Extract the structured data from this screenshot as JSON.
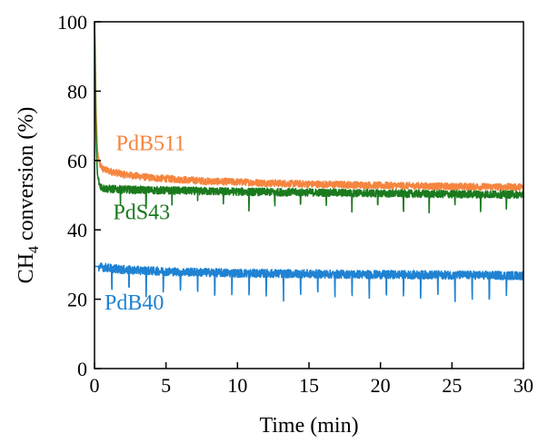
{
  "chart_data": {
    "type": "line",
    "xlabel": "Time (min)",
    "ylabel_main": "CH",
    "ylabel_sub": "4",
    "ylabel_rest": " conversion (%)",
    "xlim": [
      0,
      30
    ],
    "ylim": [
      0,
      100
    ],
    "x_ticks": [
      0,
      5,
      10,
      15,
      20,
      25,
      30
    ],
    "y_ticks": [
      0,
      20,
      40,
      60,
      80,
      100
    ],
    "grid": false,
    "legend": "inline labels",
    "series": [
      {
        "name": "PdB511",
        "color": "#F5853F",
        "points": [
          [
            0.0,
            100
          ],
          [
            0.05,
            92
          ],
          [
            0.1,
            75
          ],
          [
            0.2,
            63
          ],
          [
            0.35,
            59
          ],
          [
            0.6,
            57.5
          ],
          [
            1,
            57
          ],
          [
            2,
            56
          ],
          [
            4,
            55
          ],
          [
            6,
            54.5
          ],
          [
            8,
            54
          ],
          [
            10,
            53.8
          ],
          [
            12,
            53.5
          ],
          [
            15,
            53.2
          ],
          [
            18,
            53
          ],
          [
            20,
            52.8
          ],
          [
            22,
            52.7
          ],
          [
            25,
            52.5
          ],
          [
            28,
            52.4
          ],
          [
            30,
            52.3
          ]
        ],
        "noise": 1.0,
        "label_x": 1.5,
        "label_y": 63
      },
      {
        "name": "PdS43",
        "color": "#1B7A1E",
        "points": [
          [
            0.0,
            100
          ],
          [
            0.05,
            85
          ],
          [
            0.1,
            68
          ],
          [
            0.2,
            56
          ],
          [
            0.35,
            53
          ],
          [
            0.6,
            52
          ],
          [
            1,
            51.8
          ],
          [
            3,
            51.5
          ],
          [
            6,
            51.3
          ],
          [
            10,
            51
          ],
          [
            15,
            50.8
          ],
          [
            20,
            50.5
          ],
          [
            25,
            50.3
          ],
          [
            30,
            50.2
          ]
        ],
        "noise": 1.1,
        "dips_every": 1.8,
        "dip_depth": 4,
        "label_x": 1.3,
        "label_y": 43
      },
      {
        "name": "PdB40",
        "color": "#1F82D2",
        "points": [
          [
            0.05,
            29.5
          ],
          [
            2,
            28.5
          ],
          [
            5,
            28
          ],
          [
            10,
            27.5
          ],
          [
            15,
            27.3
          ],
          [
            20,
            27.1
          ],
          [
            25,
            27
          ],
          [
            30,
            26.8
          ]
        ],
        "noise": 1.2,
        "dips_every": 1.2,
        "dip_depth": 6,
        "label_x": 0.7,
        "label_y": 17
      }
    ]
  }
}
